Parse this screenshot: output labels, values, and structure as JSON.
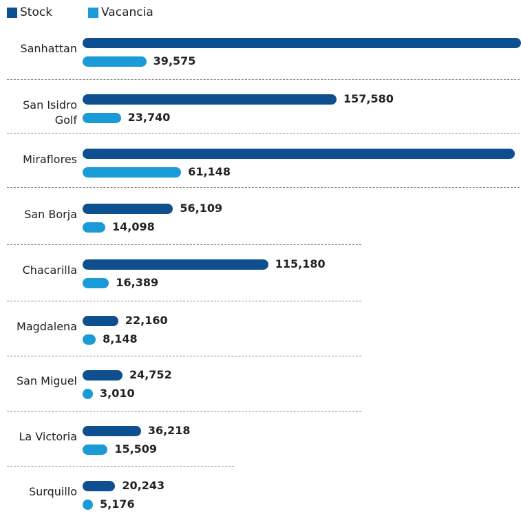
{
  "chart_data": {
    "type": "bar",
    "orientation": "horizontal",
    "categories": [
      "Sanhattan",
      "San Isidro Golf",
      "Miraflores",
      "San Borja",
      "Chacarilla",
      "Magdalena",
      "San Miguel",
      "La Victoria",
      "Surquillo"
    ],
    "series": [
      {
        "name": "Stock",
        "color": "#0e4f8f",
        "values": [
          272000,
          157580,
          268000,
          56109,
          115180,
          22160,
          24752,
          36218,
          20243
        ],
        "value_labels": [
          null,
          "157,580",
          null,
          "56,109",
          "115,180",
          "22,160",
          "24,752",
          "36,218",
          "20,243"
        ]
      },
      {
        "name": "Vacancia",
        "color": "#1a9ad6",
        "values": [
          39575,
          23740,
          61148,
          14098,
          16389,
          8148,
          3010,
          15509,
          5176
        ],
        "value_labels": [
          "39,575",
          "23,740",
          "61,148",
          "14,098",
          "16,389",
          "8,148",
          "3,010",
          "15,509",
          "5,176"
        ]
      }
    ]
  }
}
